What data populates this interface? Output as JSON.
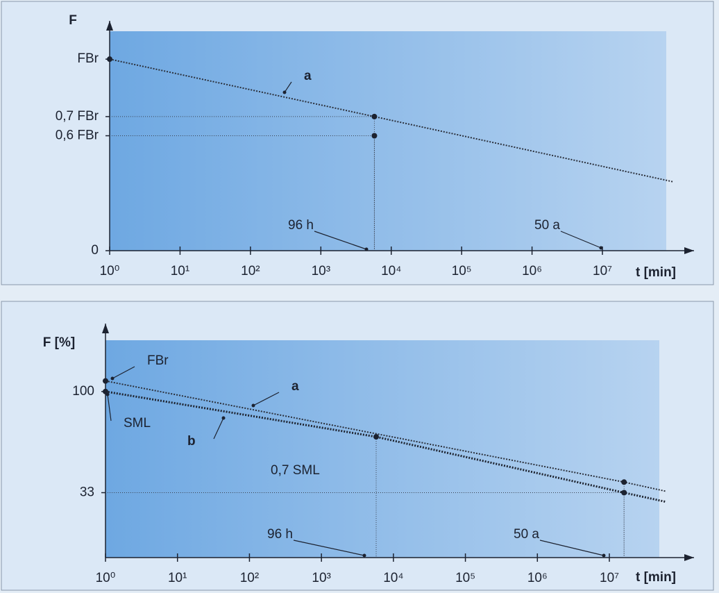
{
  "chart_data": [
    {
      "type": "line",
      "xscale": "log",
      "ylabel": "F",
      "xlabel": "t [min]",
      "xlim": [
        1,
        200000000
      ],
      "ylim": [
        0,
        1.2
      ],
      "xticks": [
        {
          "value": 1,
          "label": "10⁰"
        },
        {
          "value": 10,
          "label": "10¹"
        },
        {
          "value": 100,
          "label": "10²"
        },
        {
          "value": 1000,
          "label": "10³"
        },
        {
          "value": 10000,
          "label": "10⁴"
        },
        {
          "value": 100000,
          "label": "10⁵"
        },
        {
          "value": 1000000,
          "label": "10⁶"
        },
        {
          "value": 10000000,
          "label": "10⁷"
        }
      ],
      "yticks": [
        0,
        {
          "value": 0.6,
          "label": "0,6 FBr"
        },
        {
          "value": 0.7,
          "label": "0,7 FBr"
        },
        {
          "value": 1,
          "label": "FBr"
        }
      ],
      "series": [
        {
          "color": "#2a2f3a",
          "x": [
            1,
            5760,
            100000000
          ],
          "values": [
            1,
            0.7,
            0.36
          ]
        }
      ],
      "markers": {
        "x": [
          1,
          5760,
          5760
        ],
        "values": [
          1,
          0.7,
          0.6
        ]
      },
      "annotations": [
        "a",
        "96 h",
        "50 a"
      ]
    },
    {
      "type": "line",
      "xscale": "log",
      "ylabel": "F [%]",
      "xlabel": "t [min]",
      "xlim": [
        1,
        150000000
      ],
      "ylim": [
        -10,
        145
      ],
      "xticks": [
        {
          "value": 1,
          "label": "10⁰"
        },
        {
          "value": 10,
          "label": "10¹"
        },
        {
          "value": 100,
          "label": "10²"
        },
        {
          "value": 1000,
          "label": "10³"
        },
        {
          "value": 10000,
          "label": "10⁴"
        },
        {
          "value": 100000,
          "label": "10⁵"
        },
        {
          "value": 1000000,
          "label": "10⁶"
        },
        {
          "value": 10000000,
          "label": "10⁷"
        }
      ],
      "yticks": [
        33,
        100
      ],
      "series": [
        {
          "color": "#2a2f3a",
          "x": [
            1,
            16000000,
            60000000
          ],
          "values": [
            107,
            40,
            34
          ]
        },
        {
          "color": "#1e2430",
          "x": [
            1,
            5760,
            16000000,
            60000000
          ],
          "values": [
            100,
            70,
            33,
            27
          ]
        }
      ],
      "markers": {
        "x": [
          1,
          1,
          5760,
          16000000,
          16000000
        ],
        "values": [
          107,
          100,
          70,
          40,
          33
        ]
      },
      "annotations": [
        "FBr",
        "a",
        "SML",
        "b",
        "0,7 SML",
        "96 h",
        "50 a"
      ]
    }
  ]
}
